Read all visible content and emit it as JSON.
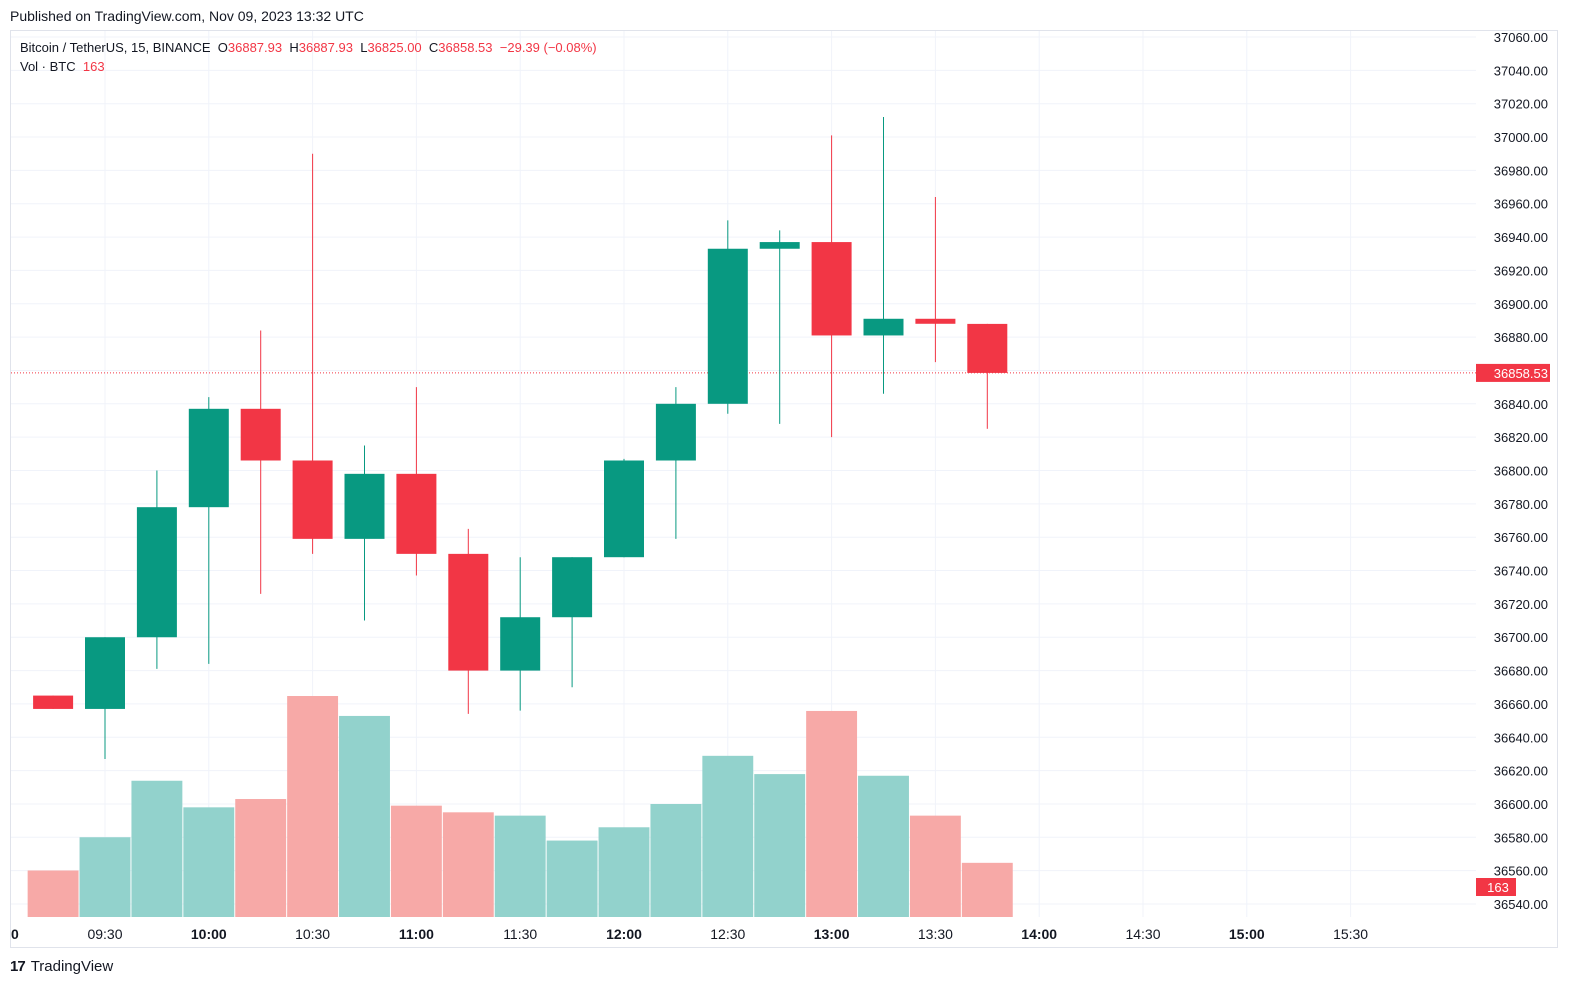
{
  "header": {
    "published": "Published on TradingView.com, Nov 09, 2023 13:32 UTC"
  },
  "legend": {
    "symbol": "Bitcoin / TetherUS, 15, BINANCE",
    "o_label": "O",
    "o_value": "36887.93",
    "h_label": "H",
    "h_value": "36887.93",
    "l_label": "L",
    "l_value": "36825.00",
    "c_label": "C",
    "c_value": "36858.53",
    "change": "−29.39 (−0.08%)",
    "vol_label": "Vol · BTC",
    "vol_value": "163"
  },
  "footer": {
    "logo_text": "TradingView",
    "logo_mark": "17"
  },
  "colors": {
    "up": "#089981",
    "down": "#f23645",
    "up_vol": "#92d2cc",
    "down_vol": "#f7a9a7",
    "grid": "#f0f3fa",
    "price_line": "#f23645",
    "axis_text": "#131722"
  },
  "chart_data": {
    "type": "candlestick",
    "symbol": "Bitcoin / TetherUS",
    "interval": "15",
    "exchange": "BINANCE",
    "y_ticks": [
      "37060.00",
      "37040.00",
      "37020.00",
      "37000.00",
      "36980.00",
      "36960.00",
      "36940.00",
      "36920.00",
      "36900.00",
      "36880.00",
      "36860.00",
      "36840.00",
      "36820.00",
      "36800.00",
      "36780.00",
      "36760.00",
      "36740.00",
      "36720.00",
      "36700.00",
      "36680.00",
      "36660.00",
      "36640.00",
      "36620.00",
      "36600.00",
      "36580.00",
      "36560.00",
      "36540.00"
    ],
    "ylim": [
      36530,
      37066
    ],
    "x_ticks": [
      {
        "label": "0",
        "bold": true,
        "slot": -1.9
      },
      {
        "label": "09:30",
        "bold": false,
        "slot": 0
      },
      {
        "label": "10:00",
        "bold": true,
        "slot": 2
      },
      {
        "label": "10:30",
        "bold": false,
        "slot": 4
      },
      {
        "label": "11:00",
        "bold": true,
        "slot": 6
      },
      {
        "label": "11:30",
        "bold": false,
        "slot": 8
      },
      {
        "label": "12:00",
        "bold": true,
        "slot": 10
      },
      {
        "label": "12:30",
        "bold": false,
        "slot": 12
      },
      {
        "label": "13:00",
        "bold": true,
        "slot": 14
      },
      {
        "label": "13:30",
        "bold": false,
        "slot": 16
      },
      {
        "label": "14:00",
        "bold": true,
        "slot": 18
      },
      {
        "label": "14:30",
        "bold": false,
        "slot": 20
      },
      {
        "label": "15:00",
        "bold": true,
        "slot": 22
      },
      {
        "label": "15:30",
        "bold": false,
        "slot": 24
      }
    ],
    "candles": [
      {
        "time": "09:00",
        "open": 36665,
        "high": 36665,
        "low": 36657,
        "close": 36657
      },
      {
        "time": "09:15",
        "open": 36657,
        "high": 36700,
        "low": 36627,
        "close": 36700
      },
      {
        "time": "09:30",
        "open": 36700,
        "high": 36800,
        "low": 36681,
        "close": 36778
      },
      {
        "time": "09:45",
        "open": 36778,
        "high": 36844,
        "low": 36684,
        "close": 36837
      },
      {
        "time": "10:00",
        "open": 36837,
        "high": 36884,
        "low": 36726,
        "close": 36806
      },
      {
        "time": "10:15",
        "open": 36806,
        "high": 36990,
        "low": 36750,
        "close": 36759
      },
      {
        "time": "10:30",
        "open": 36759,
        "high": 36815,
        "low": 36710,
        "close": 36798
      },
      {
        "time": "10:45",
        "open": 36798,
        "high": 36850,
        "low": 36737,
        "close": 36750
      },
      {
        "time": "11:00",
        "open": 36750,
        "high": 36765,
        "low": 36654,
        "close": 36680
      },
      {
        "time": "11:15",
        "open": 36680,
        "high": 36748,
        "low": 36656,
        "close": 36712
      },
      {
        "time": "11:30",
        "open": 36712,
        "high": 36748,
        "low": 36670,
        "close": 36748
      },
      {
        "time": "11:45",
        "open": 36748,
        "high": 36807,
        "low": 36748,
        "close": 36806
      },
      {
        "time": "12:00",
        "open": 36806,
        "high": 36850,
        "low": 36759,
        "close": 36840
      },
      {
        "time": "12:15",
        "open": 36840,
        "high": 36950,
        "low": 36834,
        "close": 36933
      },
      {
        "time": "12:30",
        "open": 36933,
        "high": 36944,
        "low": 36828,
        "close": 36937
      },
      {
        "time": "12:45",
        "open": 36937,
        "high": 37001,
        "low": 36820,
        "close": 36881
      },
      {
        "time": "13:00",
        "open": 36881,
        "high": 37012,
        "low": 36846,
        "close": 36891
      },
      {
        "time": "13:15",
        "open": 36891,
        "high": 36964,
        "low": 36865,
        "close": 36888
      },
      {
        "time": "13:30",
        "open": 36887.93,
        "high": 36887.93,
        "low": 36825,
        "close": 36858.53
      }
    ],
    "volume": {
      "label": "Vol · BTC",
      "max": 665,
      "values": [
        140,
        240,
        410,
        330,
        355,
        665,
        605,
        335,
        315,
        305,
        230,
        270,
        340,
        485,
        430,
        620,
        425,
        305,
        163
      ]
    },
    "last_price": "36858.53",
    "last_price_value": 36858.53,
    "last_volume": "163"
  }
}
